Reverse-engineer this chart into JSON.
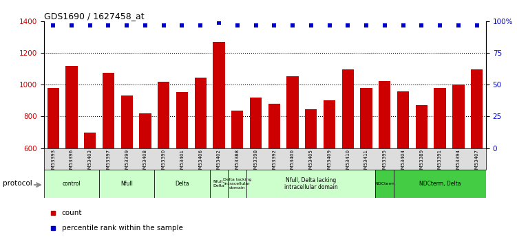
{
  "title": "GDS1690 / 1627458_at",
  "samples": [
    "GSM53393",
    "GSM53396",
    "GSM53403",
    "GSM53397",
    "GSM53399",
    "GSM53408",
    "GSM53390",
    "GSM53401",
    "GSM53406",
    "GSM53402",
    "GSM53388",
    "GSM53398",
    "GSM53392",
    "GSM53400",
    "GSM53405",
    "GSM53409",
    "GSM53410",
    "GSM53411",
    "GSM53395",
    "GSM53404",
    "GSM53389",
    "GSM53391",
    "GSM53394",
    "GSM53407"
  ],
  "counts": [
    980,
    1120,
    700,
    1075,
    930,
    820,
    1020,
    955,
    1045,
    1270,
    835,
    920,
    880,
    1055,
    845,
    900,
    1095,
    980,
    1025,
    960,
    870,
    980,
    1000,
    1095
  ],
  "percentile": [
    97,
    97,
    97,
    97,
    97,
    97,
    97,
    97,
    97,
    99,
    97,
    97,
    97,
    97,
    97,
    97,
    97,
    97,
    97,
    97,
    97,
    97,
    97,
    97
  ],
  "bar_color": "#cc0000",
  "dot_color": "#0000cc",
  "ylim_left": [
    600,
    1400
  ],
  "ylim_right": [
    0,
    100
  ],
  "yticks_left": [
    600,
    800,
    1000,
    1200,
    1400
  ],
  "yticks_right": [
    0,
    25,
    50,
    75,
    100
  ],
  "ytick_labels_right": [
    "0",
    "25",
    "50",
    "75",
    "100%"
  ],
  "dotted_lines": [
    800,
    1000,
    1200
  ],
  "groups": [
    {
      "label": "control",
      "start": 0,
      "end": 3,
      "color": "#ccffcc",
      "dark": false
    },
    {
      "label": "Nfull",
      "start": 3,
      "end": 6,
      "color": "#ccffcc",
      "dark": false
    },
    {
      "label": "Delta",
      "start": 6,
      "end": 9,
      "color": "#ccffcc",
      "dark": false
    },
    {
      "label": "Nfull,\nDelta",
      "start": 9,
      "end": 10,
      "color": "#ccffcc",
      "dark": false
    },
    {
      "label": "Delta lacking\nintracellular\ndomain",
      "start": 10,
      "end": 11,
      "color": "#ccffcc",
      "dark": false
    },
    {
      "label": "Nfull, Delta lacking\nintracellular domain",
      "start": 11,
      "end": 18,
      "color": "#ccffcc",
      "dark": false
    },
    {
      "label": "NDCterm",
      "start": 18,
      "end": 19,
      "color": "#44cc44",
      "dark": true
    },
    {
      "label": "NDCterm, Delta",
      "start": 19,
      "end": 24,
      "color": "#44cc44",
      "dark": true
    }
  ],
  "protocol_label": "protocol",
  "legend_count_label": "count",
  "legend_pct_label": "percentile rank within the sample",
  "fig_width": 7.51,
  "fig_height": 3.45,
  "dpi": 100
}
